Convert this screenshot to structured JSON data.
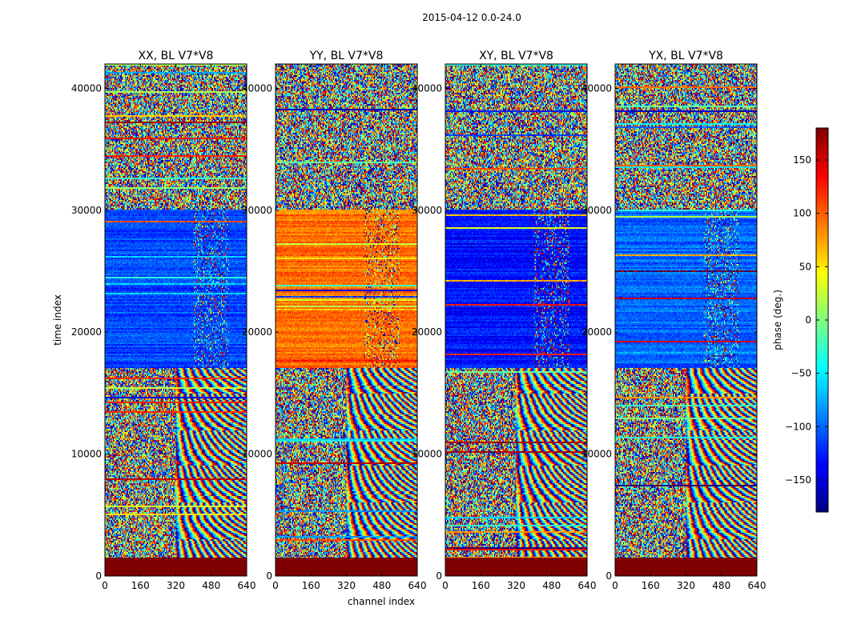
{
  "chart_data": {
    "type": "heatmap",
    "title": "2015-04-12 0.0-24.0",
    "xlabel": "channel index",
    "ylabel": "time index",
    "x_range": [
      0,
      640
    ],
    "y_range": [
      0,
      42000
    ],
    "x_ticks": [
      0,
      160,
      320,
      480,
      640
    ],
    "y_ticks": [
      0,
      10000,
      20000,
      30000,
      40000
    ],
    "panels": [
      {
        "title": "XX, BL V7*V8",
        "dominant_phase_17000_30000": -110
      },
      {
        "title": "YY, BL V7*V8",
        "dominant_phase_17000_30000": 95
      },
      {
        "title": "XY, BL V7*V8",
        "dominant_phase_17000_30000": -130
      },
      {
        "title": "YX, BL V7*V8",
        "dominant_phase_17000_30000": -100
      }
    ],
    "colorbar": {
      "label": "phase (deg.)",
      "range": [
        -180,
        180
      ],
      "ticks": [
        150,
        100,
        50,
        0,
        -50,
        -100,
        -150
      ],
      "tick_labels": [
        "150",
        "100",
        "50",
        "0",
        "−50",
        "−100",
        "−150"
      ],
      "colormap": "jet"
    },
    "masked_region": {
      "y_from": 0,
      "y_to": 1500,
      "color": "#7f0000"
    }
  }
}
